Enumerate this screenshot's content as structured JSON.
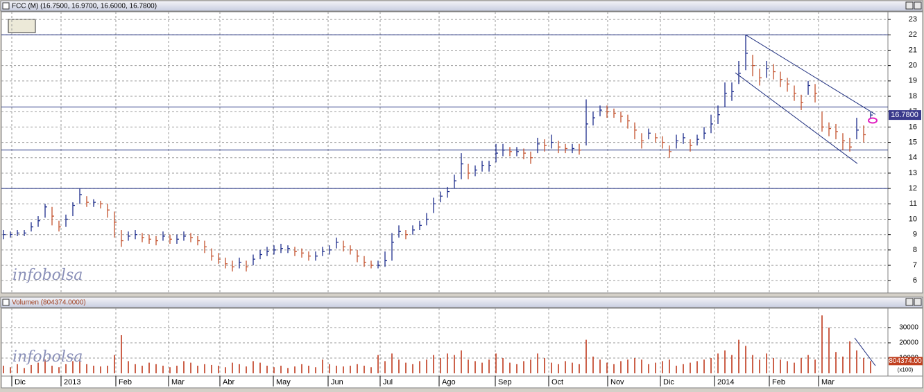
{
  "watermark": "infobolsa",
  "chart_data": [
    {
      "type": "hlc",
      "title": "FCC (M) (16.7500, 16.9700, 16.6000, 16.7800)",
      "up_color": "#1c2c8c",
      "down_color": "#c4502c",
      "line_color": "#1f2f7f",
      "xlim": [
        -0.3,
        127.5
      ],
      "ylim": [
        5.2,
        23.5
      ],
      "yticks": [
        6,
        7,
        8,
        9,
        10,
        11,
        12,
        13,
        14,
        15,
        16,
        17,
        18,
        19,
        20,
        21,
        22,
        23
      ],
      "grid": true,
      "high": [
        9.3,
        9.2,
        9.3,
        9.3,
        9.8,
        10.2,
        11.0,
        10.8,
        9.9,
        10.3,
        11.1,
        12.0,
        11.5,
        11.3,
        11.2,
        11.0,
        10.5,
        9.3,
        9.2,
        9.3,
        9.1,
        9.0,
        8.9,
        9.2,
        9.0,
        9.0,
        9.2,
        9.1,
        8.9,
        8.6,
        8.1,
        7.8,
        7.5,
        7.3,
        7.5,
        7.3,
        7.7,
        8.0,
        8.2,
        8.3,
        8.4,
        8.3,
        8.2,
        8.1,
        7.9,
        7.9,
        8.2,
        8.3,
        8.8,
        8.6,
        8.3,
        8.0,
        7.6,
        7.3,
        7.3,
        7.9,
        9.1,
        9.6,
        9.3,
        9.6,
        9.9,
        10.4,
        11.4,
        11.8,
        12.1,
        12.9,
        14.3,
        13.6,
        13.5,
        13.8,
        13.8,
        14.9,
        14.9,
        14.7,
        14.7,
        14.6,
        14.4,
        15.3,
        15.2,
        15.5,
        15.1,
        14.9,
        14.9,
        14.9,
        17.8,
        17.0,
        17.4,
        17.4,
        17.2,
        17.0,
        16.8,
        16.3,
        15.6,
        15.9,
        15.6,
        15.4,
        14.8,
        15.5,
        15.6,
        15.2,
        15.5,
        16.0,
        16.8,
        17.4,
        18.9,
        18.9,
        20.3,
        22.0,
        20.7,
        19.8,
        20.3,
        20.1,
        19.6,
        19.2,
        18.7,
        18.1,
        19.0,
        18.8,
        17.0,
        16.3,
        16.2,
        15.6,
        15.3,
        16.6,
        16.1,
        16.97
      ],
      "low": [
        8.7,
        8.8,
        8.9,
        8.9,
        9.2,
        9.5,
        10.1,
        9.6,
        9.2,
        9.5,
        10.2,
        11.0,
        10.8,
        10.8,
        10.7,
        10.1,
        8.8,
        8.2,
        8.6,
        8.7,
        8.5,
        8.4,
        8.3,
        8.6,
        8.4,
        8.4,
        8.6,
        8.5,
        8.3,
        7.8,
        7.3,
        7.1,
        6.8,
        6.6,
        6.8,
        6.6,
        7.0,
        7.4,
        7.6,
        7.7,
        7.8,
        7.8,
        7.6,
        7.5,
        7.3,
        7.3,
        7.6,
        7.7,
        8.1,
        7.9,
        7.7,
        7.2,
        6.9,
        6.8,
        6.8,
        6.9,
        7.3,
        8.8,
        8.7,
        9.0,
        9.3,
        9.6,
        10.4,
        11.1,
        11.4,
        12.0,
        12.6,
        12.6,
        12.8,
        13.1,
        13.1,
        13.7,
        14.1,
        14.1,
        14.1,
        13.9,
        13.6,
        14.3,
        14.4,
        14.6,
        14.3,
        14.3,
        14.3,
        14.2,
        14.8,
        16.1,
        16.7,
        16.6,
        16.6,
        16.3,
        15.9,
        15.2,
        14.6,
        15.2,
        15.0,
        14.6,
        14.0,
        14.6,
        14.9,
        14.4,
        14.8,
        15.2,
        15.6,
        16.2,
        17.3,
        17.7,
        18.8,
        19.7,
        19.3,
        18.7,
        19.2,
        19.1,
        18.6,
        18.3,
        17.7,
        17.1,
        18.1,
        17.6,
        15.7,
        15.4,
        15.2,
        14.5,
        14.4,
        15.2,
        15.0,
        16.6
      ],
      "close": [
        9.0,
        9.0,
        9.1,
        9.1,
        9.5,
        9.9,
        10.8,
        10.2,
        9.5,
        10.0,
        10.9,
        11.6,
        11.1,
        11.1,
        11.0,
        10.6,
        9.8,
        8.6,
        8.9,
        9.0,
        8.8,
        8.7,
        8.6,
        8.9,
        8.7,
        8.7,
        8.9,
        8.8,
        8.6,
        8.2,
        7.6,
        7.4,
        7.1,
        6.9,
        7.2,
        6.9,
        7.4,
        7.7,
        7.9,
        8.0,
        8.1,
        8.1,
        7.9,
        7.8,
        7.6,
        7.6,
        7.9,
        8.0,
        8.5,
        8.2,
        8.0,
        7.6,
        7.2,
        7.0,
        7.0,
        7.3,
        8.5,
        9.2,
        9.0,
        9.3,
        9.6,
        10.0,
        11.0,
        11.5,
        11.8,
        12.5,
        13.6,
        13.0,
        13.2,
        13.5,
        13.5,
        14.3,
        14.5,
        14.4,
        14.4,
        14.3,
        14.0,
        14.9,
        14.8,
        15.0,
        14.7,
        14.6,
        14.6,
        14.5,
        16.2,
        16.6,
        17.1,
        17.0,
        16.9,
        16.7,
        16.4,
        15.8,
        15.1,
        15.6,
        15.3,
        15.0,
        14.4,
        15.1,
        15.3,
        14.8,
        15.2,
        15.6,
        16.2,
        16.8,
        18.2,
        18.3,
        19.5,
        20.8,
        20.0,
        19.2,
        19.8,
        19.6,
        19.1,
        18.8,
        18.2,
        17.6,
        18.7,
        18.2,
        16.0,
        15.9,
        15.7,
        15.1,
        14.7,
        15.8,
        15.5,
        16.78
      ],
      "last_label": "16.7800",
      "hlines": [
        22,
        17.3,
        14.5,
        12
      ],
      "trendlines": [
        {
          "x": [
            107,
            125.7
          ],
          "y": [
            22,
            16.82
          ]
        },
        {
          "x": [
            105.5,
            123.1
          ],
          "y": [
            19.53,
            13.62
          ]
        }
      ]
    },
    {
      "type": "bar",
      "title": "Volumen (804374.0000)",
      "color": "#c0391c",
      "line_color": "#1f2f7f",
      "xlim": [
        -0.3,
        127.5
      ],
      "ylim": [
        -1800,
        42700
      ],
      "yticks": [
        10000,
        20000,
        30000
      ],
      "grid": true,
      "xticks": [
        {
          "value": 1.2,
          "label": "Dic"
        },
        {
          "value": 8.3,
          "label": "2013"
        },
        {
          "value": 16.2,
          "label": "Feb"
        },
        {
          "value": 23.8,
          "label": "Mar"
        },
        {
          "value": 31.2,
          "label": "Abr"
        },
        {
          "value": 38.9,
          "label": "May"
        },
        {
          "value": 46.8,
          "label": "Jun"
        },
        {
          "value": 54.3,
          "label": "Jul"
        },
        {
          "value": 62.8,
          "label": "Ago"
        },
        {
          "value": 70.9,
          "label": "Sep"
        },
        {
          "value": 78.6,
          "label": "Oct"
        },
        {
          "value": 87.1,
          "label": "Nov"
        },
        {
          "value": 94.7,
          "label": "Dic"
        },
        {
          "value": 102.5,
          "label": "2014"
        },
        {
          "value": 110.4,
          "label": "Feb"
        },
        {
          "value": 117.5,
          "label": "Mar"
        }
      ],
      "values": [
        5000,
        4000,
        6000,
        3500,
        5500,
        7000,
        9000,
        5000,
        4000,
        6000,
        8000,
        9000,
        6000,
        5000,
        4500,
        5000,
        12000,
        25000,
        8000,
        6000,
        5000,
        7000,
        6000,
        5000,
        4000,
        5000,
        8000,
        7000,
        5000,
        6000,
        5500,
        5000,
        4000,
        7000,
        6000,
        4500,
        8000,
        7000,
        5000,
        4000,
        5000,
        3500,
        4500,
        6000,
        5000,
        4000,
        9000,
        6000,
        5000,
        4500,
        5000,
        6000,
        5000,
        4000,
        12000,
        8000,
        13000,
        9000,
        7000,
        6000,
        8000,
        9000,
        12000,
        10000,
        13000,
        12000,
        15000,
        9000,
        8000,
        7000,
        9000,
        13000,
        10000,
        7000,
        6000,
        8000,
        9000,
        13000,
        10000,
        7000,
        6000,
        8000,
        7000,
        6000,
        22000,
        11000,
        9000,
        7000,
        6000,
        8000,
        9000,
        10000,
        9000,
        6000,
        7000,
        8000,
        9000,
        5000,
        6000,
        7000,
        8000,
        9000,
        10000,
        13000,
        15000,
        12000,
        22000,
        18000,
        12000,
        9000,
        13000,
        10000,
        9000,
        8000,
        7000,
        10000,
        12000,
        9000,
        38000,
        30000,
        14000,
        11000,
        21000,
        15000,
        10000,
        8043.74
      ],
      "last_label": "804374.00",
      "unit_label": "(x100)",
      "trendlines": [
        {
          "x": [
            122.7,
            125.7
          ],
          "y": [
            23200,
            5000
          ]
        }
      ]
    }
  ]
}
